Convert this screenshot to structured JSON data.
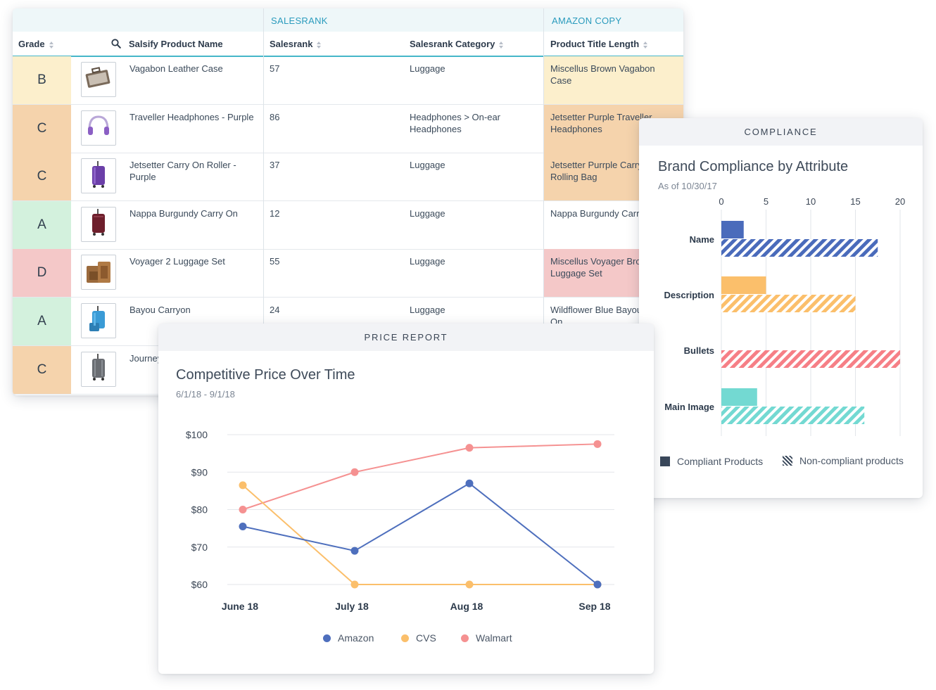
{
  "table": {
    "groups": {
      "salesrank": "SALESRANK",
      "amazon_copy": "AMAZON COPY"
    },
    "headers": {
      "grade": "Grade",
      "name": "Salsify Product Name",
      "salesrank": "Salesrank",
      "category": "Salesrank Category",
      "title_length": "Product Title Length"
    },
    "rows": [
      {
        "grade": "B",
        "name": "Vagabon Leather Case",
        "salesrank": "57",
        "category": "Luggage",
        "copy": "Miscellus Brown Vagabon Case",
        "grade_color": "#fcefcc",
        "copy_color": "#fcefcc",
        "icon": "briefcase-icon"
      },
      {
        "grade": "C",
        "name": "Traveller Headphones - Purple",
        "salesrank": "86",
        "category": "Headphones > On-ear Headphones",
        "copy": "Jetsetter Purple Traveller Headphones",
        "grade_color": "#f5d3ac",
        "copy_color": "#f5d3ac",
        "icon": "headphones-icon"
      },
      {
        "grade": "C",
        "name": "Jetsetter Carry On Roller - Purple",
        "salesrank": "37",
        "category": "Luggage",
        "copy": "Jetsetter Purrple Carry On Rolling Bag",
        "grade_color": "#f5d3ac",
        "copy_color": "#f5d3ac",
        "icon": "purple-suitcase-icon"
      },
      {
        "grade": "A",
        "name": "Nappa Burgundy Carry On",
        "salesrank": "12",
        "category": "Luggage",
        "copy": "Nappa Burgundy Carry On",
        "grade_color": "#d3f1dd",
        "copy_color": "#ffffff",
        "icon": "burgundy-suitcase-icon"
      },
      {
        "grade": "D",
        "name": "Voyager 2 Luggage Set",
        "salesrank": "55",
        "category": "Luggage",
        "copy": "Miscellus Voyager Brown Luggage Set",
        "grade_color": "#f4c8c8",
        "copy_color": "#f4c8c8",
        "icon": "luggage-set-icon"
      },
      {
        "grade": "A",
        "name": "Bayou Carryon",
        "salesrank": "24",
        "category": "Luggage",
        "copy": "Wildflower Blue Bayou Carry On",
        "grade_color": "#d3f1dd",
        "copy_color": "#ffffff",
        "icon": "blue-suitcase-icon"
      },
      {
        "grade": "C",
        "name": "Journey",
        "salesrank": "",
        "category": "",
        "copy": "",
        "grade_color": "#f5d3ac",
        "copy_color": "#ffffff",
        "icon": "grey-suitcase-icon"
      }
    ]
  },
  "compliance": {
    "band": "COMPLIANCE",
    "title": "Brand Compliance by Attribute",
    "subtitle": "As of 10/30/17",
    "legend": [
      "Compliant Products",
      "Non-compliant products"
    ]
  },
  "price_report": {
    "band": "PRICE REPORT",
    "title": "Competitive Price Over Time",
    "subtitle": "6/1/18 - 9/1/18"
  },
  "chart_data": [
    {
      "type": "line",
      "title": "Competitive Price Over Time",
      "subtitle": "6/1/18 - 9/1/18",
      "x": [
        "June 18",
        "July 18",
        "Aug 18",
        "Sep 18"
      ],
      "yticks": [
        "$100",
        "$90",
        "$80",
        "$70",
        "$60"
      ],
      "ylim": [
        60,
        100
      ],
      "grid": true,
      "legend": "bottom",
      "series": [
        {
          "name": "Amazon",
          "color": "#4e6fbd",
          "values": [
            75.5,
            69,
            87,
            60
          ]
        },
        {
          "name": "CVS",
          "color": "#fbbf6b",
          "values": [
            86.5,
            60,
            60,
            60
          ]
        },
        {
          "name": "Walmart",
          "color": "#f59191",
          "values": [
            80,
            90,
            96.5,
            97.5
          ]
        }
      ]
    },
    {
      "type": "bar",
      "orientation": "horizontal",
      "title": "Brand Compliance by Attribute",
      "subtitle": "As of 10/30/17",
      "categories": [
        "Name",
        "Description",
        "Bullets",
        "Main Image"
      ],
      "xticks": [
        "0",
        "5",
        "10",
        "15",
        "20"
      ],
      "xlim": [
        0,
        20
      ],
      "grid": true,
      "legend": "bottom",
      "series": [
        {
          "name": "Compliant Products",
          "values": [
            2.5,
            5,
            0,
            4
          ]
        },
        {
          "name": "Non-compliant products",
          "values": [
            17.5,
            15,
            20,
            16
          ]
        }
      ],
      "category_colors": [
        "#4a6bbb",
        "#fbbf6b",
        "#f67f86",
        "#73d9d2"
      ]
    }
  ]
}
